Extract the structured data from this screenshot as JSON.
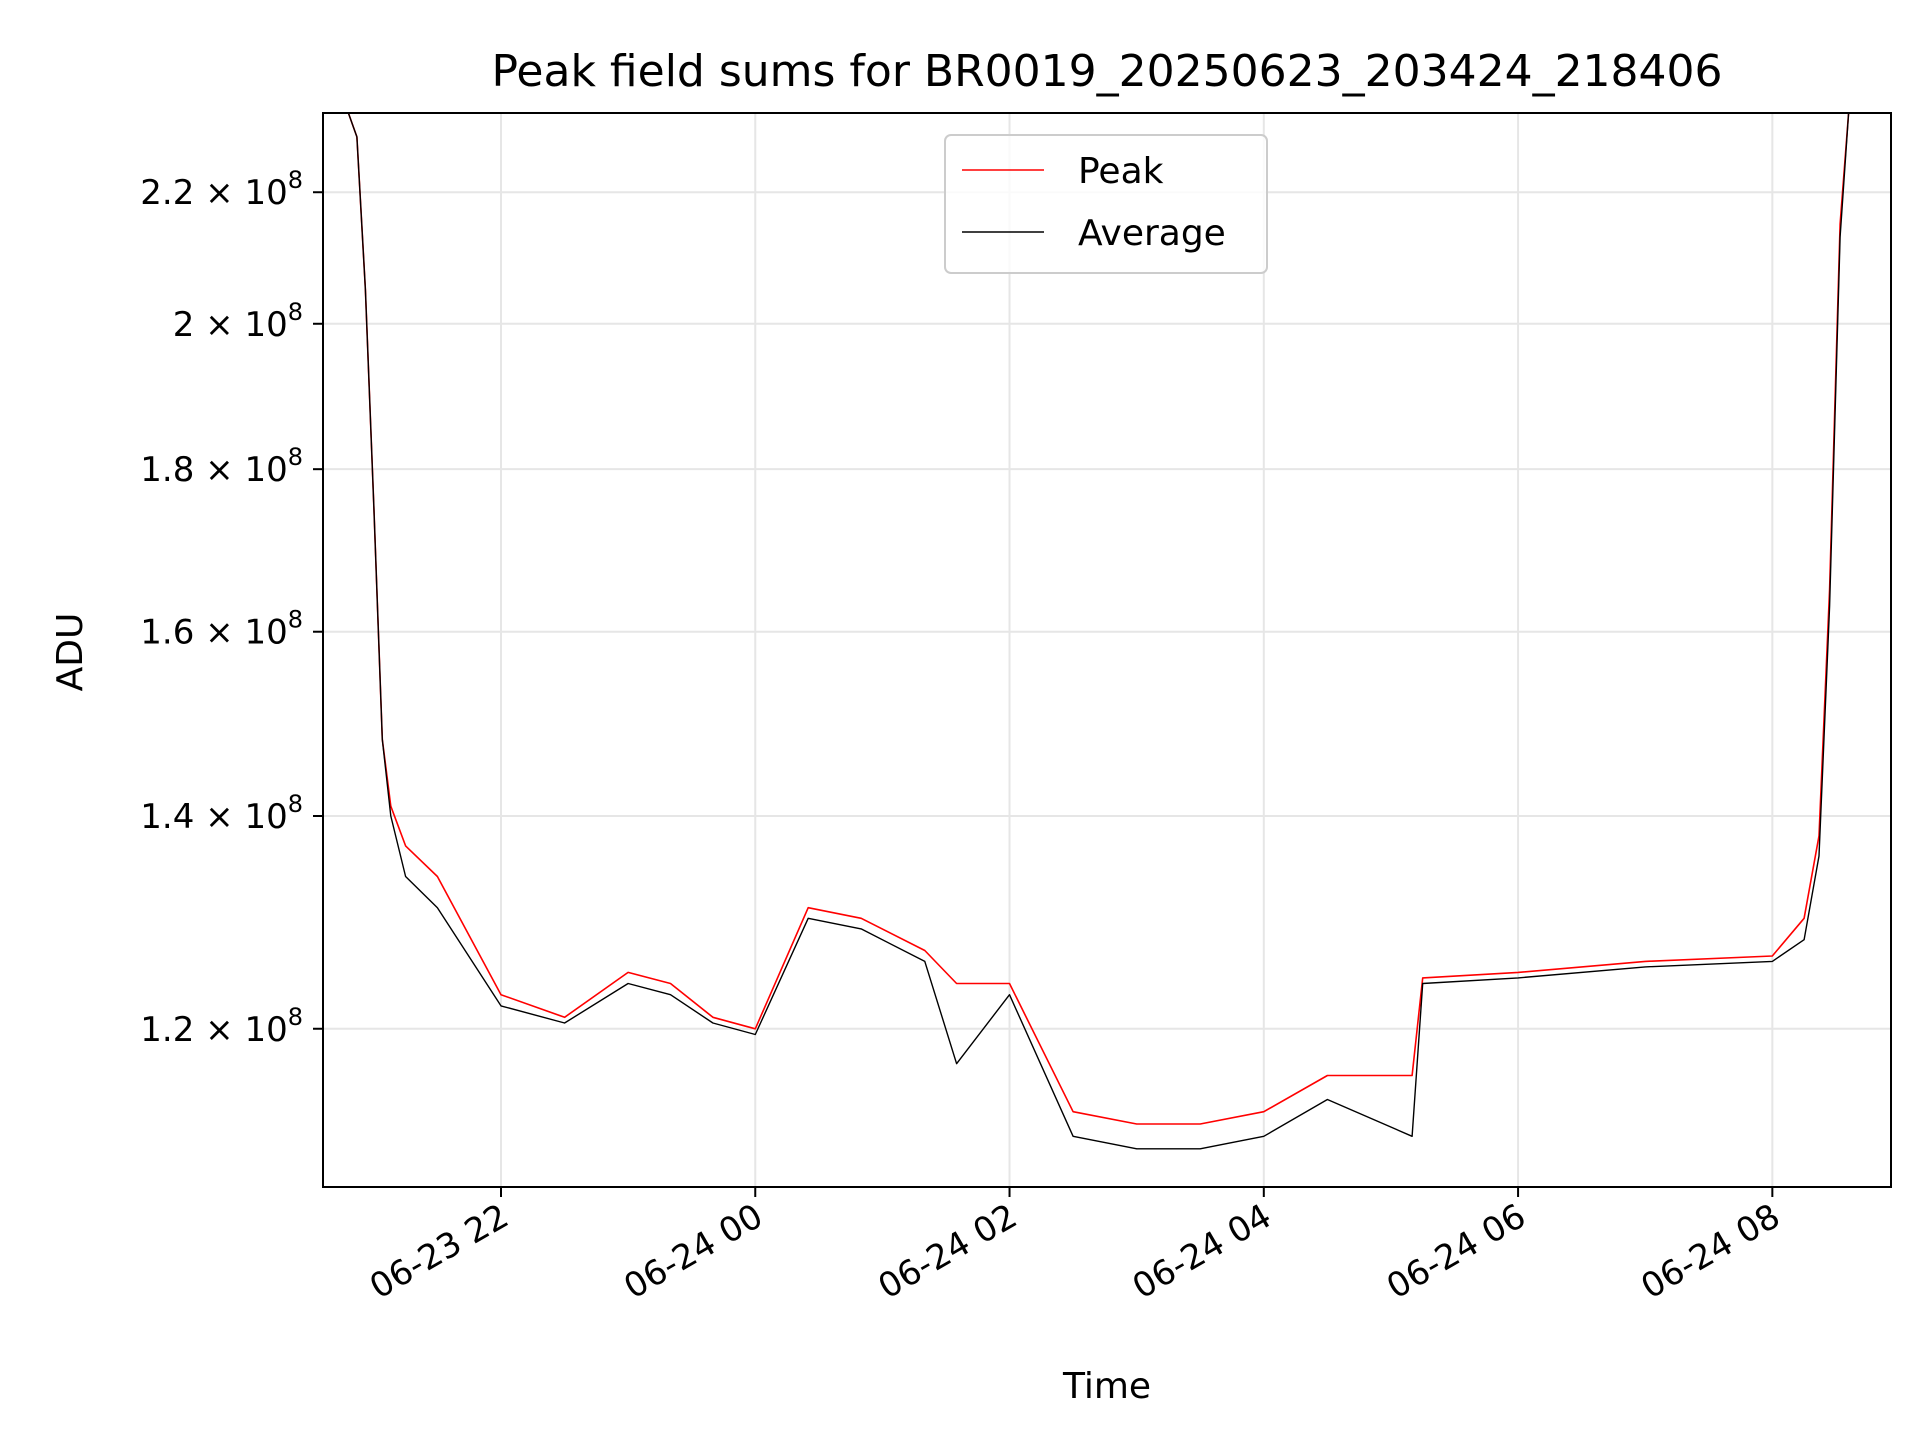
{
  "chart_data": {
    "type": "line",
    "title": "Peak field sums for BR0019_20250623_203424_218406",
    "xlabel": "Time",
    "ylabel": "ADU",
    "x_ticks": [
      "06-23 22",
      "06-24 00",
      "06-24 02",
      "06-24 04",
      "06-24 06",
      "06-24 08"
    ],
    "y_ticks": [
      {
        "mantissa": "1.2",
        "exp": "8",
        "value": 120000000
      },
      {
        "mantissa": "1.4",
        "exp": "8",
        "value": 140000000
      },
      {
        "mantissa": "1.6",
        "exp": "8",
        "value": 160000000
      },
      {
        "mantissa": "1.8",
        "exp": "8",
        "value": 180000000
      },
      {
        "mantissa": "2",
        "exp": "8",
        "value": 200000000
      },
      {
        "mantissa": "2.2",
        "exp": "8",
        "value": 220000000
      }
    ],
    "xlim": [
      "2025-06-23 20:36",
      "2025-06-24 08:56"
    ],
    "ylim": [
      107000000,
      233000000
    ],
    "y_scale": "log",
    "grid": true,
    "legend_position": "upper center",
    "series": [
      {
        "name": "Peak",
        "color": "#ff0000",
        "x": [
          "2025-06-23 20:36",
          "2025-06-23 20:48",
          "2025-06-23 20:52",
          "2025-06-23 20:56",
          "2025-06-23 21:00",
          "2025-06-23 21:04",
          "2025-06-23 21:08",
          "2025-06-23 21:15",
          "2025-06-23 21:30",
          "2025-06-23 22:00",
          "2025-06-23 22:30",
          "2025-06-23 23:00",
          "2025-06-23 23:20",
          "2025-06-23 23:40",
          "2025-06-24 00:00",
          "2025-06-24 00:25",
          "2025-06-24 00:50",
          "2025-06-24 01:20",
          "2025-06-24 01:35",
          "2025-06-24 02:00",
          "2025-06-24 02:30",
          "2025-06-24 03:00",
          "2025-06-24 03:30",
          "2025-06-24 04:00",
          "2025-06-24 04:30",
          "2025-06-24 05:10",
          "2025-06-24 05:15",
          "2025-06-24 06:00",
          "2025-06-24 07:00",
          "2025-06-24 08:00",
          "2025-06-24 08:15",
          "2025-06-24 08:22",
          "2025-06-24 08:27",
          "2025-06-24 08:32",
          "2025-06-24 08:36"
        ],
        "y": [
          233000000,
          233000000,
          229000000,
          205000000,
          175000000,
          148000000,
          141000000,
          137000000,
          134000000,
          123000000,
          121000000,
          125000000,
          124000000,
          121000000,
          120000000,
          131000000,
          130000000,
          127000000,
          124000000,
          124000000,
          113000000,
          112000000,
          112000000,
          113000000,
          116000000,
          116000000,
          124500000,
          125000000,
          126000000,
          126500000,
          130000000,
          138000000,
          165000000,
          215000000,
          233000000
        ]
      },
      {
        "name": "Average",
        "color": "#000000",
        "x": [
          "2025-06-23 20:36",
          "2025-06-23 20:48",
          "2025-06-23 20:52",
          "2025-06-23 20:56",
          "2025-06-23 21:00",
          "2025-06-23 21:04",
          "2025-06-23 21:08",
          "2025-06-23 21:15",
          "2025-06-23 21:30",
          "2025-06-23 22:00",
          "2025-06-23 22:30",
          "2025-06-23 23:00",
          "2025-06-23 23:20",
          "2025-06-23 23:40",
          "2025-06-24 00:00",
          "2025-06-24 00:25",
          "2025-06-24 00:50",
          "2025-06-24 01:20",
          "2025-06-24 01:35",
          "2025-06-24 02:00",
          "2025-06-24 02:30",
          "2025-06-24 03:00",
          "2025-06-24 03:30",
          "2025-06-24 04:00",
          "2025-06-24 04:30",
          "2025-06-24 05:10",
          "2025-06-24 05:15",
          "2025-06-24 06:00",
          "2025-06-24 07:00",
          "2025-06-24 08:00",
          "2025-06-24 08:15",
          "2025-06-24 08:22",
          "2025-06-24 08:27",
          "2025-06-24 08:32",
          "2025-06-24 08:36"
        ],
        "y": [
          233000000,
          233000000,
          229000000,
          205000000,
          175000000,
          148000000,
          140000000,
          134000000,
          131000000,
          122000000,
          120500000,
          124000000,
          123000000,
          120500000,
          119500000,
          130000000,
          129000000,
          126000000,
          117000000,
          123000000,
          111000000,
          110000000,
          110000000,
          111000000,
          114000000,
          111000000,
          124000000,
          124500000,
          125500000,
          126000000,
          128000000,
          136000000,
          163000000,
          213000000,
          233000000
        ]
      }
    ]
  }
}
